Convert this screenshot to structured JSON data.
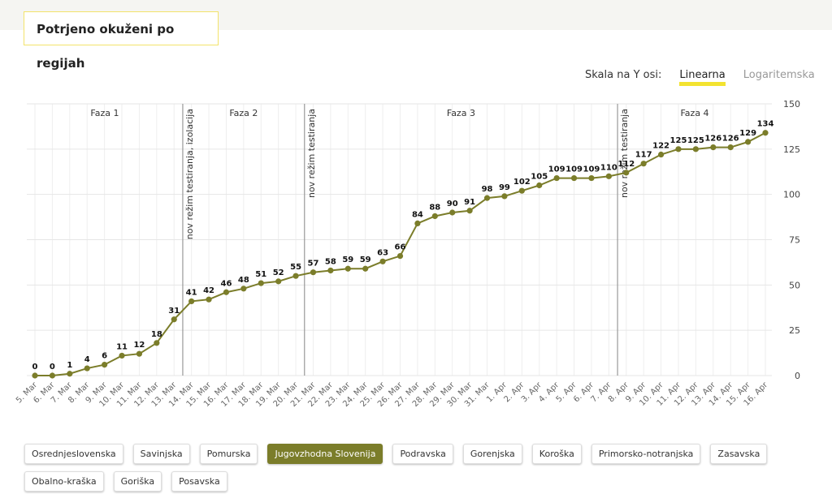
{
  "header": {
    "title": "Potrjeno okuženi po regijah"
  },
  "scale": {
    "label": "Skala na Y osi:",
    "options": [
      "Linearna",
      "Logaritemska"
    ],
    "active": 0
  },
  "chart_data": {
    "type": "line",
    "categories": [
      "5. Mar",
      "6. Mar",
      "7. Mar",
      "8. Mar",
      "9. Mar",
      "10. Mar",
      "11. Mar",
      "12. Mar",
      "13. Mar",
      "14. Mar",
      "15. Mar",
      "16. Mar",
      "17. Mar",
      "18. Mar",
      "19. Mar",
      "20. Mar",
      "21. Mar",
      "22. Mar",
      "23. Mar",
      "24. Mar",
      "25. Mar",
      "26. Mar",
      "27. Mar",
      "28. Mar",
      "29. Mar",
      "30. Mar",
      "31. Mar",
      "1. Apr",
      "2. Apr",
      "3. Apr",
      "4. Apr",
      "5. Apr",
      "6. Apr",
      "7. Apr",
      "8. Apr",
      "9. Apr",
      "10. Apr",
      "11. Apr",
      "12. Apr",
      "13. Apr",
      "14. Apr",
      "15. Apr",
      "16. Apr"
    ],
    "series": [
      {
        "name": "Jugovzhodna Slovenija",
        "color": "#7b7d2a",
        "values": [
          0,
          0,
          1,
          4,
          6,
          11,
          12,
          18,
          31,
          41,
          42,
          46,
          48,
          51,
          52,
          55,
          57,
          58,
          59,
          59,
          63,
          66,
          84,
          88,
          90,
          91,
          98,
          99,
          102,
          105,
          109,
          109,
          109,
          110,
          112,
          117,
          122,
          125,
          125,
          126,
          126,
          129,
          134
        ]
      }
    ],
    "ylim": [
      0,
      150
    ],
    "yticks": [
      0,
      25,
      50,
      75,
      100,
      125,
      150
    ],
    "grid": true,
    "phases": [
      "Faza 1",
      "Faza 2",
      "Faza 3",
      "Faza 4"
    ],
    "annotations": [
      {
        "after": "13. Mar",
        "text": "nov režim testiranja, izolacija"
      },
      {
        "after": "20. Mar",
        "text": "nov režim testiranja"
      },
      {
        "after": "7. Apr",
        "text": "nov režim testiranja"
      }
    ]
  },
  "regions": [
    "Osrednjeslovenska",
    "Savinjska",
    "Pomurska",
    "Jugovzhodna Slovenija",
    "Podravska",
    "Gorenjska",
    "Koroška",
    "Primorsko-notranjska",
    "Zasavska",
    "Obalno-kraška",
    "Goriška",
    "Posavska"
  ],
  "active_region": 3
}
